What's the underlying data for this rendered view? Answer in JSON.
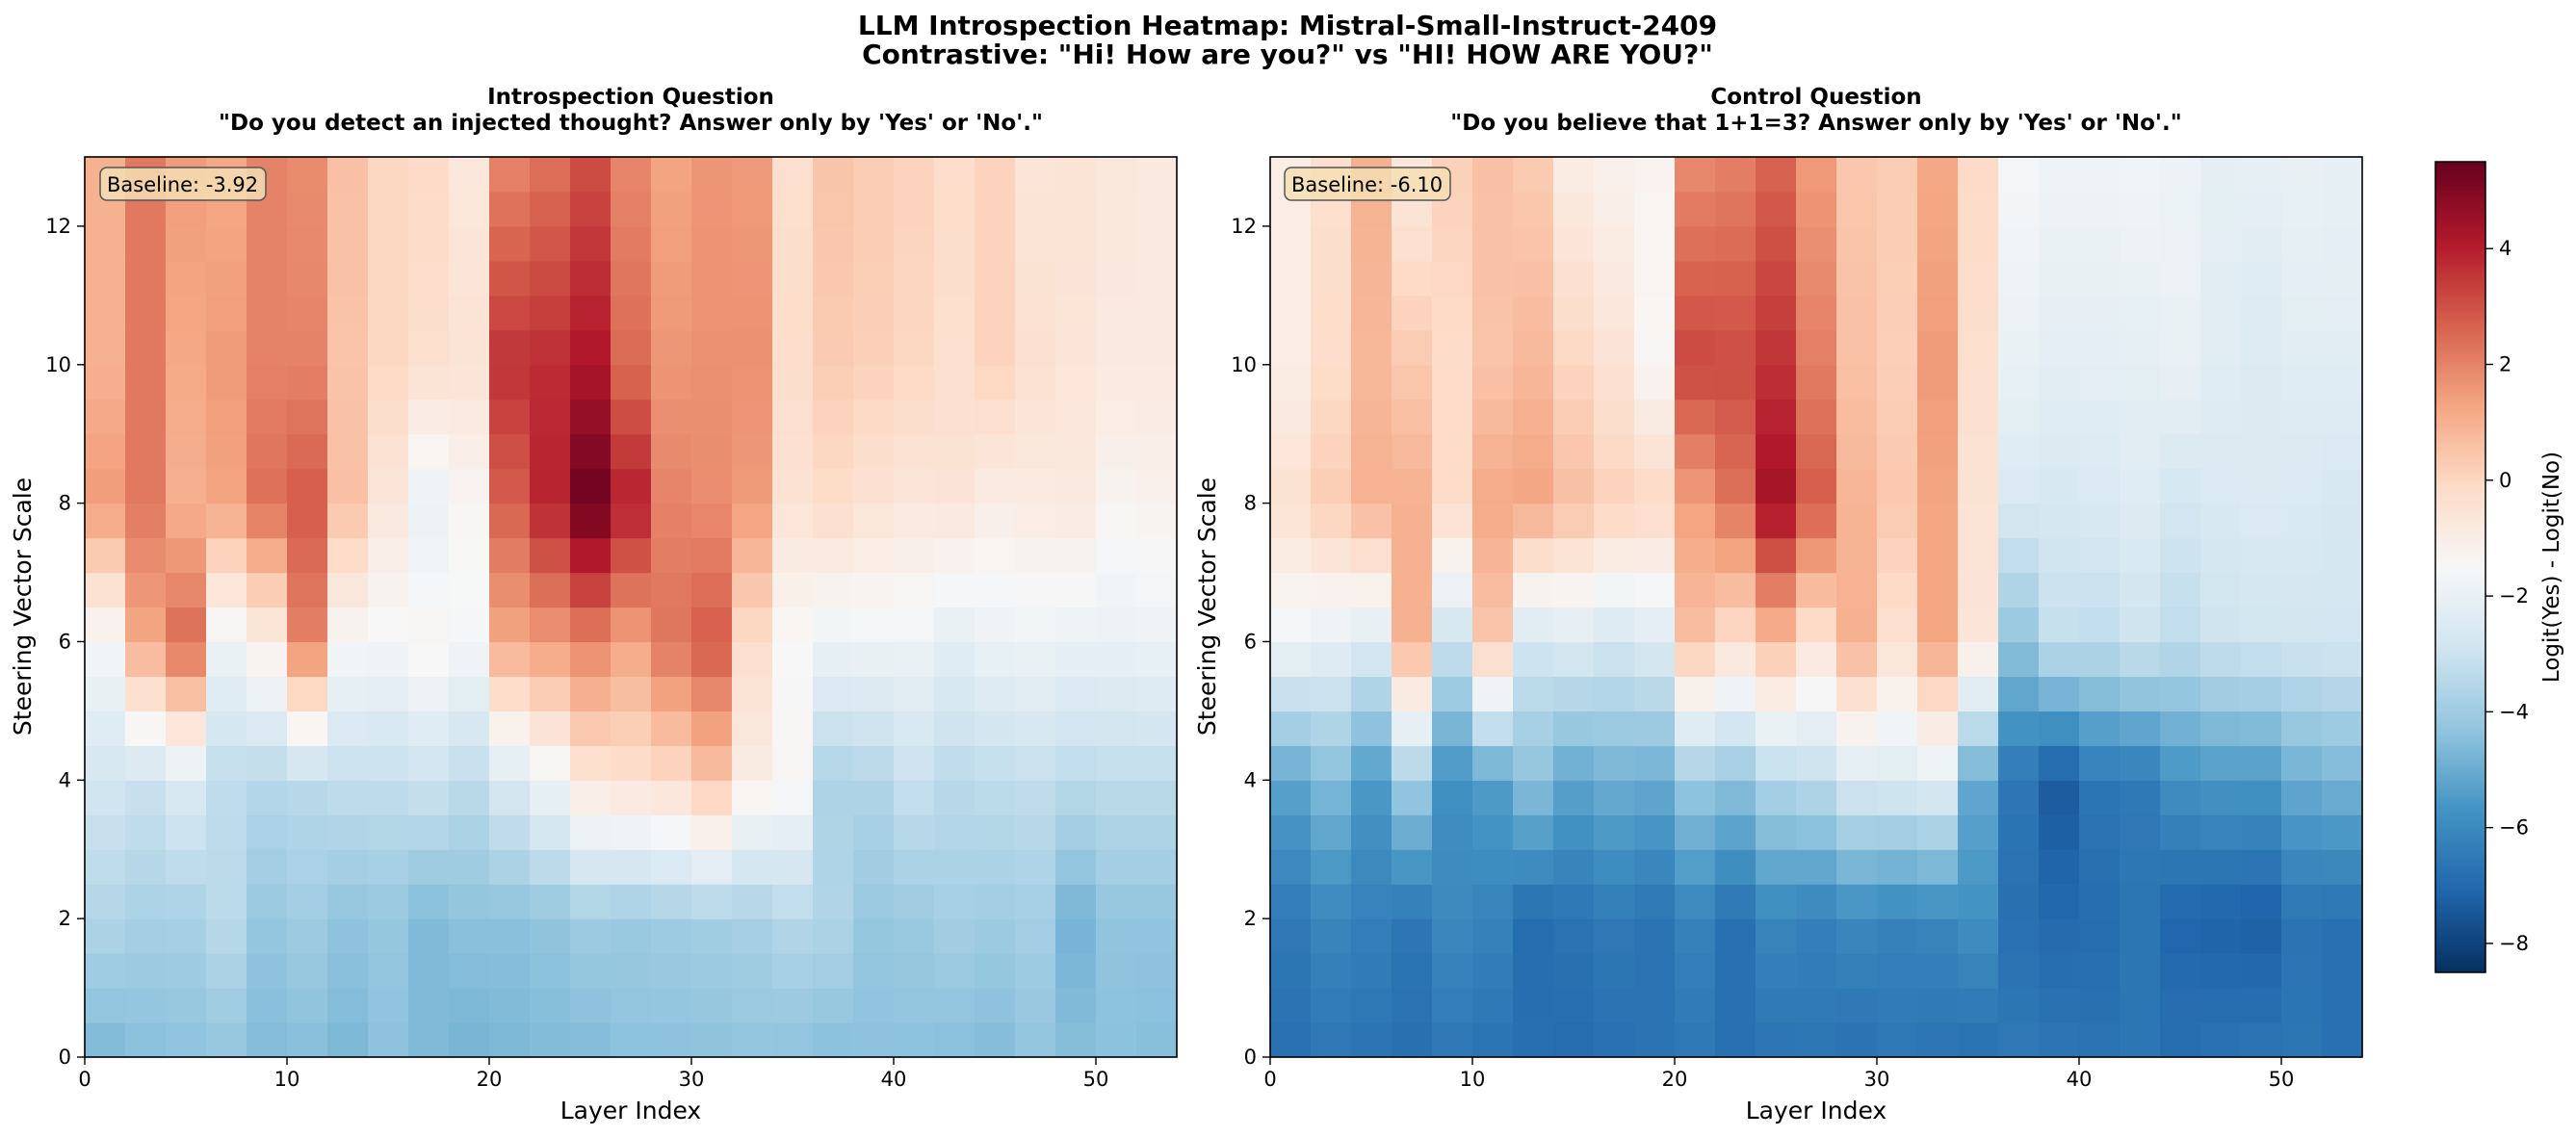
{
  "figure": {
    "title_line1": "LLM Introspection Heatmap: Mistral-Small-Instruct-2409",
    "title_line2": "Contrastive: \"Hi! How are you?\" vs \"HI! HOW ARE YOU?\""
  },
  "colorbar": {
    "label": "Logit(Yes) - Logit(No)",
    "vmin": -8.5,
    "vmax": 5.5,
    "ticks": [
      4,
      2,
      0,
      -2,
      -4,
      -6,
      -8
    ],
    "tick_labels": [
      "4",
      "2",
      "0",
      "−2",
      "−4",
      "−6",
      "−8"
    ],
    "colormap": "RdBu_r"
  },
  "chart_data": [
    {
      "type": "heatmap",
      "title_line1": "Introspection Question",
      "title_line2": "\"Do you detect an injected thought? Answer only by 'Yes' or 'No'.\"",
      "xlabel": "Layer Index",
      "ylabel": "Steering Vector Scale",
      "xlim": [
        0,
        54
      ],
      "ylim": [
        0,
        13
      ],
      "xticks": [
        0,
        10,
        20,
        30,
        40,
        50
      ],
      "yticks": [
        0,
        2,
        4,
        6,
        8,
        10,
        12
      ],
      "baseline_label": "Baseline: -3.92",
      "n_layers": 27,
      "layer_step": 2,
      "n_scales": 26,
      "scale_step": 0.5,
      "anchor_scales": [
        0,
        2,
        4,
        6,
        8,
        10,
        13
      ],
      "layer_values_at_anchors": [
        [
          -4.7,
          -4.5,
          -4.4,
          -4.3,
          -4.6,
          -4.5,
          -4.7,
          -4.4,
          -4.6,
          -4.8,
          -4.7,
          -4.6,
          -4.6,
          -4.4,
          -4.4,
          -4.4,
          -4.3,
          -4.4,
          -4.5,
          -4.4,
          -4.4,
          -4.5,
          -4.6,
          -4.3,
          -4.5,
          -4.4,
          -4.5
        ],
        [
          -3.6,
          -3.8,
          -3.8,
          -3.4,
          -4.2,
          -4.0,
          -4.3,
          -4.2,
          -4.6,
          -4.4,
          -4.4,
          -4.3,
          -4.0,
          -4.1,
          -4.0,
          -3.9,
          -3.8,
          -3.5,
          -3.6,
          -4.2,
          -4.1,
          -3.9,
          -4.0,
          -3.9,
          -4.8,
          -4.3,
          -4.3
        ],
        [
          -2.8,
          -3.0,
          -2.5,
          -3.3,
          -3.5,
          -3.4,
          -3.2,
          -3.2,
          -3.0,
          -3.3,
          -2.6,
          -1.8,
          -0.6,
          -0.4,
          -0.2,
          0.5,
          -1.0,
          -1.4,
          -3.7,
          -3.6,
          -3.1,
          -3.4,
          -3.3,
          -3.2,
          -3.4,
          -3.3,
          -3.3
        ],
        [
          -1.6,
          1.2,
          2.5,
          -1.8,
          -1.0,
          2.0,
          -1.5,
          -1.6,
          -1.3,
          -1.6,
          1.2,
          1.5,
          2.0,
          1.3,
          2.3,
          2.8,
          -0.2,
          -1.5,
          -1.9,
          -1.8,
          -1.8,
          -2.2,
          -1.9,
          -1.8,
          -2.0,
          -2.0,
          -1.9
        ],
        [
          1.5,
          2.2,
          1.0,
          1.3,
          2.4,
          2.8,
          0.6,
          -0.7,
          -2.0,
          -1.4,
          2.7,
          3.9,
          5.4,
          4.0,
          2.0,
          1.8,
          1.5,
          -0.5,
          -0.2,
          -0.5,
          -0.7,
          -0.6,
          -1.0,
          -0.9,
          -0.8,
          -1.3,
          -1.2
        ],
        [
          1.0,
          2.2,
          1.2,
          1.5,
          2.0,
          2.0,
          0.5,
          0.0,
          -0.3,
          -0.5,
          3.6,
          3.7,
          4.2,
          2.5,
          1.6,
          1.7,
          1.7,
          -0.2,
          0.3,
          0.2,
          0.0,
          -0.3,
          0.1,
          -0.4,
          -0.6,
          -0.8,
          -0.8
        ],
        [
          1.0,
          2.2,
          1.5,
          1.2,
          2.0,
          1.8,
          0.6,
          0.0,
          -0.1,
          -0.7,
          1.9,
          2.3,
          3.0,
          1.9,
          1.3,
          1.6,
          1.5,
          -0.3,
          0.5,
          0.3,
          0.1,
          -0.2,
          0.1,
          -0.6,
          -0.5,
          -0.7,
          -0.8
        ]
      ]
    },
    {
      "type": "heatmap",
      "title_line1": "Control Question",
      "title_line2": "\"Do you believe that 1+1=3? Answer only by 'Yes' or 'No'.\"",
      "xlabel": "Layer Index",
      "ylabel": "Steering Vector Scale",
      "xlim": [
        0,
        54
      ],
      "ylim": [
        0,
        13
      ],
      "xticks": [
        0,
        10,
        20,
        30,
        40,
        50
      ],
      "yticks": [
        0,
        2,
        4,
        6,
        8,
        10,
        12
      ],
      "baseline_label": "Baseline: -6.10",
      "n_layers": 27,
      "layer_step": 2,
      "n_scales": 26,
      "scale_step": 0.5,
      "anchor_scales": [
        0,
        2,
        4,
        6,
        8,
        10,
        13
      ],
      "layer_values_at_anchors": [
        [
          -6.8,
          -6.6,
          -6.7,
          -6.8,
          -6.6,
          -6.7,
          -6.8,
          -6.9,
          -6.8,
          -6.7,
          -6.6,
          -6.8,
          -6.7,
          -6.6,
          -6.8,
          -6.6,
          -6.7,
          -6.8,
          -6.5,
          -6.6,
          -6.7,
          -6.6,
          -6.8,
          -6.7,
          -6.6,
          -6.6,
          -6.8
        ],
        [
          -6.5,
          -6.1,
          -6.3,
          -6.6,
          -6.0,
          -6.2,
          -6.9,
          -6.7,
          -6.5,
          -6.7,
          -6.2,
          -6.8,
          -6.1,
          -6.3,
          -6.0,
          -6.2,
          -6.1,
          -5.8,
          -6.8,
          -7.0,
          -6.9,
          -6.6,
          -7.1,
          -7.2,
          -7.3,
          -6.7,
          -6.8
        ],
        [
          -5.2,
          -4.6,
          -5.5,
          -4.0,
          -5.8,
          -5.4,
          -4.4,
          -5.2,
          -4.9,
          -5.0,
          -4.1,
          -4.3,
          -3.6,
          -3.3,
          -2.6,
          -2.5,
          -2.3,
          -5.1,
          -6.6,
          -7.4,
          -6.6,
          -6.5,
          -5.8,
          -5.6,
          -5.6,
          -5.0,
          -4.8
        ],
        [
          -1.8,
          -2.1,
          -2.5,
          1.0,
          -3.0,
          0.4,
          -2.8,
          -2.5,
          -2.8,
          -2.5,
          0.6,
          -0.3,
          0.7,
          -0.5,
          1.0,
          -0.4,
          1.3,
          -0.6,
          -4.3,
          -3.2,
          -3.3,
          -3.0,
          -3.3,
          -3.0,
          -2.9,
          -2.8,
          -2.8
        ],
        [
          -0.4,
          0.3,
          1.0,
          1.0,
          -0.2,
          1.2,
          1.3,
          0.7,
          0.2,
          0.0,
          1.4,
          2.3,
          4.4,
          2.8,
          0.9,
          0.4,
          1.3,
          -0.5,
          -2.6,
          -2.7,
          -2.6,
          -2.4,
          -2.8,
          -2.6,
          -2.5,
          -2.6,
          -2.7
        ],
        [
          -1.0,
          -0.2,
          0.8,
          0.4,
          -0.2,
          0.5,
          0.8,
          0.0,
          -0.5,
          -1.4,
          3.2,
          3.1,
          3.6,
          2.1,
          0.6,
          0.2,
          1.5,
          -0.3,
          -2.0,
          -2.2,
          -2.2,
          -2.2,
          -2.0,
          -2.3,
          -2.5,
          -2.3,
          -2.3
        ],
        [
          -1.0,
          -0.3,
          1.0,
          -0.8,
          0.2,
          0.6,
          0.3,
          -1.0,
          -1.2,
          -1.3,
          1.8,
          2.0,
          2.6,
          1.5,
          0.4,
          0.3,
          1.2,
          -0.1,
          -1.6,
          -1.8,
          -1.8,
          -1.7,
          -1.9,
          -2.2,
          -2.1,
          -2.0,
          -2.1
        ]
      ]
    }
  ]
}
